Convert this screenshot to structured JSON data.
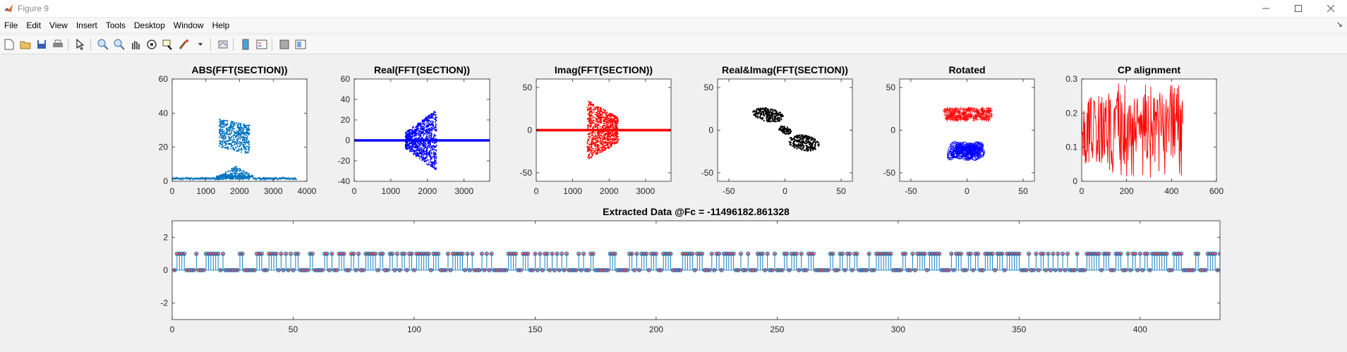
{
  "window": {
    "title": "Figure 9"
  },
  "menu": [
    "File",
    "Edit",
    "View",
    "Insert",
    "Tools",
    "Desktop",
    "Window",
    "Help"
  ],
  "toolbar": [
    "new-icon",
    "open-icon",
    "save-icon",
    "print-icon",
    "pointer-icon",
    "zoom-in-icon",
    "zoom-out-icon",
    "pan-icon",
    "rotate-icon",
    "datatip-icon",
    "brush-icon",
    "link-icon",
    "colorbar-icon",
    "legend-icon",
    "hide-plot-tools-icon",
    "show-plot-tools-icon"
  ],
  "chart_data": [
    {
      "type": "scatter",
      "title": "ABS(FFT(SECTION))",
      "color": "#0072bd",
      "xlim": [
        0,
        4000
      ],
      "ylim": [
        0,
        60
      ],
      "xticks": [
        0,
        1000,
        2000,
        3000,
        4000
      ],
      "yticks": [
        0,
        20,
        40,
        60
      ],
      "description_series": [
        {
          "name": "",
          "x": [
            0,
            3700
          ],
          "y": [
            1,
            1
          ]
        },
        {
          "name": "",
          "x": [
            1400,
            2300
          ],
          "y": [
            20,
            37
          ]
        }
      ]
    },
    {
      "type": "scatter",
      "title": "Real(FFT(SECTION))",
      "color": "#0000ff",
      "xlim": [
        0,
        3700
      ],
      "ylim": [
        -40,
        60
      ],
      "xticks": [
        0,
        1000,
        2000,
        3000
      ],
      "yticks": [
        -40,
        -20,
        0,
        20,
        40,
        60
      ]
    },
    {
      "type": "scatter",
      "title": "Imag(FFT(SECTION))",
      "color": "#ff0000",
      "xlim": [
        0,
        3700
      ],
      "ylim": [
        -60,
        60
      ],
      "xticks": [
        0,
        1000,
        2000,
        3000
      ],
      "yticks": [
        -50,
        0,
        50
      ]
    },
    {
      "type": "scatter",
      "title": "Real&Imag(FFT(SECTION))",
      "color": "#000000",
      "xlim": [
        -60,
        60
      ],
      "ylim": [
        -60,
        60
      ],
      "xticks": [
        -50,
        0,
        50
      ],
      "yticks": [
        -50,
        0,
        50
      ]
    },
    {
      "type": "scatter",
      "title": "Rotated",
      "colors": [
        "#ff0000",
        "#0000ff"
      ],
      "xlim": [
        -60,
        60
      ],
      "ylim": [
        -60,
        60
      ],
      "xticks": [
        -50,
        0,
        50
      ],
      "yticks": [
        -50,
        0,
        50
      ]
    },
    {
      "type": "line",
      "title": "CP alignment",
      "color": "#ff0000",
      "xlim": [
        0,
        600
      ],
      "ylim": [
        0,
        0.3
      ],
      "xticks": [
        0,
        200,
        400,
        600
      ],
      "yticks": [
        0,
        0.1,
        0.2,
        0.3
      ]
    },
    {
      "type": "stem",
      "title": "Extracted Data @Fc = -11496182.861328",
      "xlim": [
        0,
        433
      ],
      "ylim": [
        -3,
        3
      ],
      "xticks": [
        0,
        50,
        100,
        150,
        200,
        250,
        300,
        350,
        400
      ],
      "yticks": [
        -2,
        0,
        2
      ],
      "stem_color": "#0072bd",
      "marker_color": "#ff0000"
    }
  ]
}
